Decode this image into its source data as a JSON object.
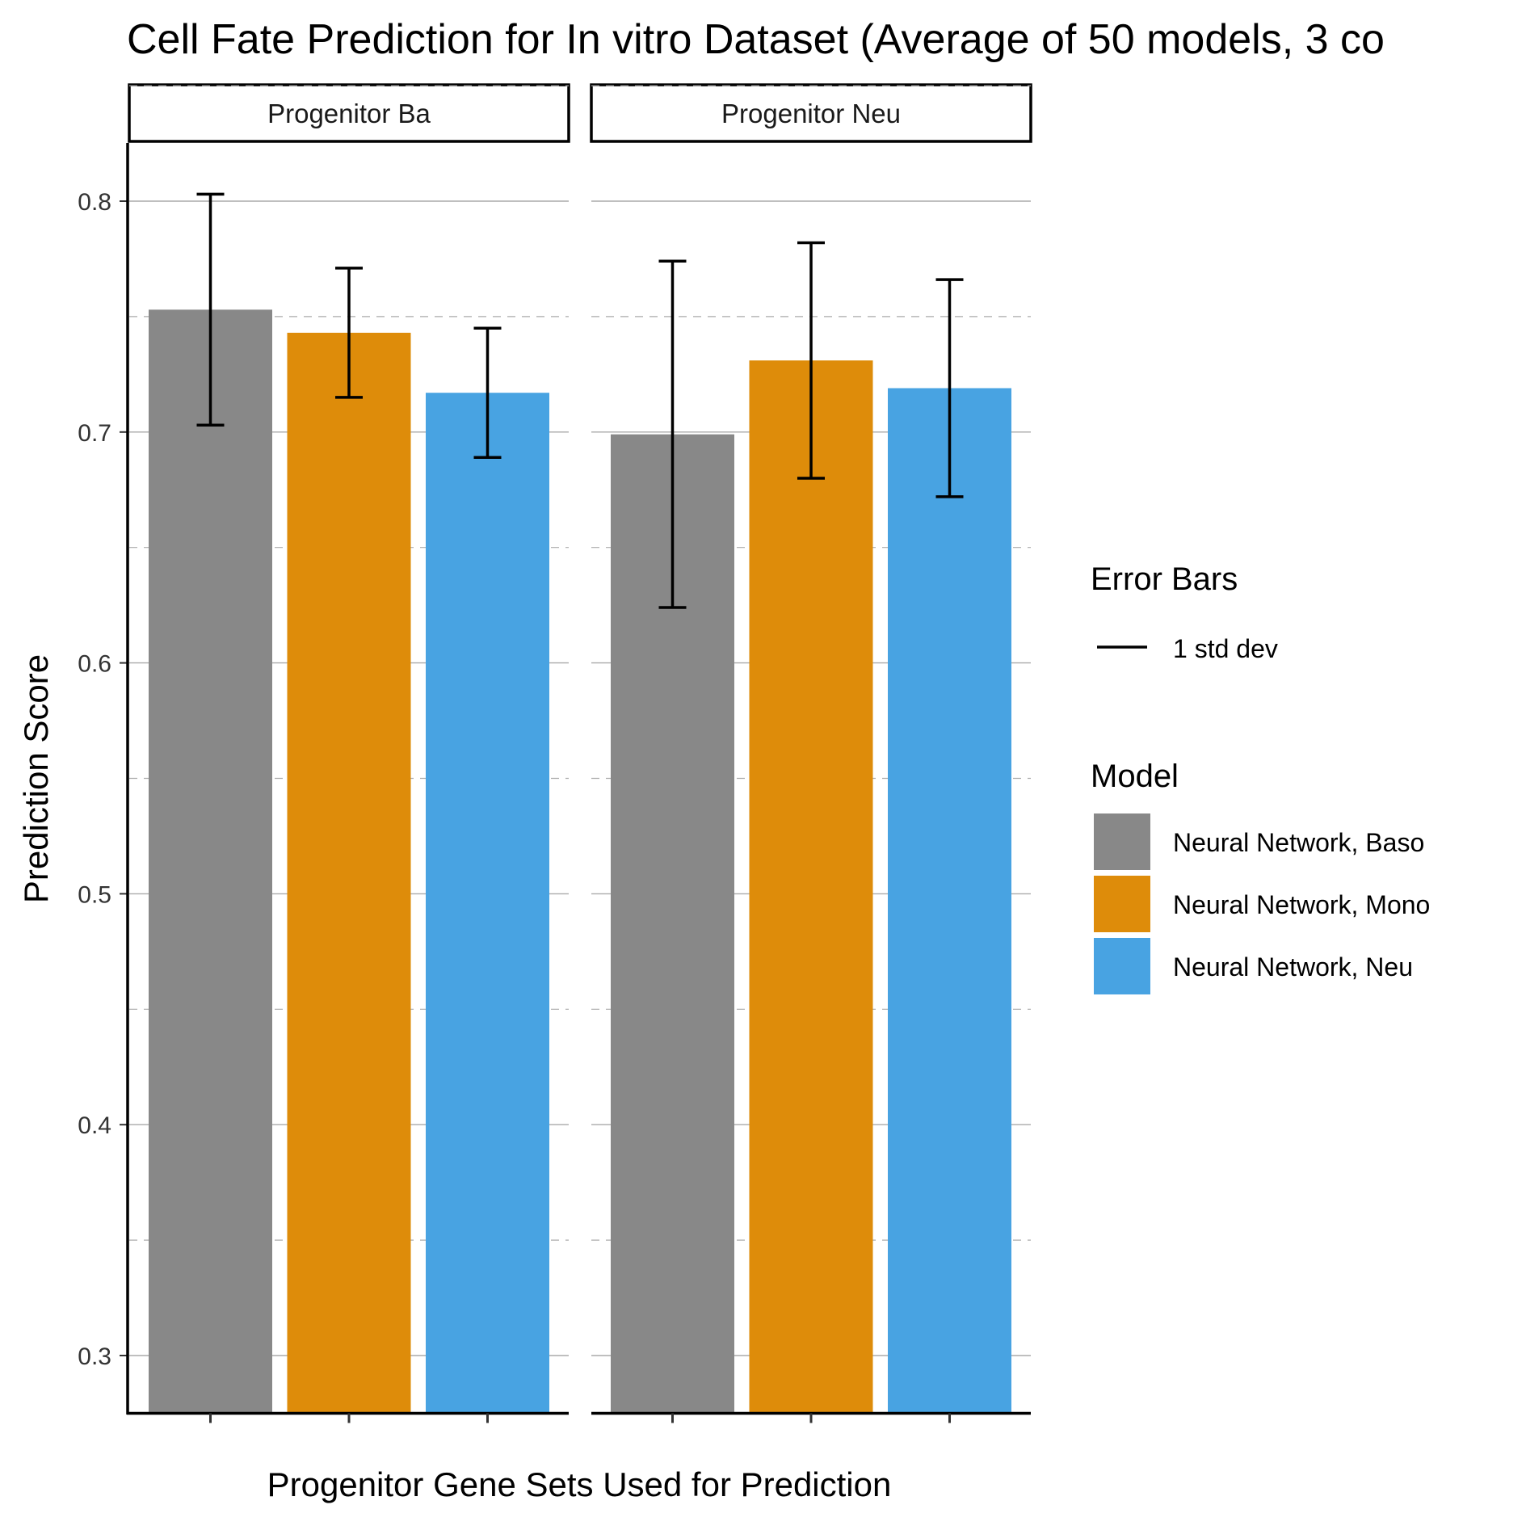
{
  "chart_data": {
    "type": "bar",
    "title": "Cell Fate Prediction for In vitro Dataset (Average of 50 models, 3 co",
    "xlabel": "Progenitor Gene Sets Used for Prediction",
    "ylabel": "Prediction Score",
    "ylim": [
      0.275,
      0.825
    ],
    "yticks": [
      "0.3",
      "0.4",
      "0.5",
      "0.6",
      "0.7",
      "0.8"
    ],
    "grid": "horizontal",
    "legend_position": "right",
    "legend_errorbars": {
      "title": "Error Bars",
      "label": "1 std dev"
    },
    "legend_model_title": "Model",
    "series": [
      {
        "name": "Neural Network, Baso",
        "color": "#888888"
      },
      {
        "name": "Neural Network, Mono",
        "color": "#DE8C0A"
      },
      {
        "name": "Neural Network, Neu",
        "color": "#48A3E2"
      }
    ],
    "facets": [
      {
        "label": "Progenitor Ba",
        "values": [
          0.753,
          0.743,
          0.717
        ],
        "errors": [
          0.05,
          0.028,
          0.028
        ]
      },
      {
        "label": "Progenitor Neu",
        "values": [
          0.699,
          0.731,
          0.719
        ],
        "errors": [
          0.075,
          0.051,
          0.047
        ]
      }
    ]
  }
}
